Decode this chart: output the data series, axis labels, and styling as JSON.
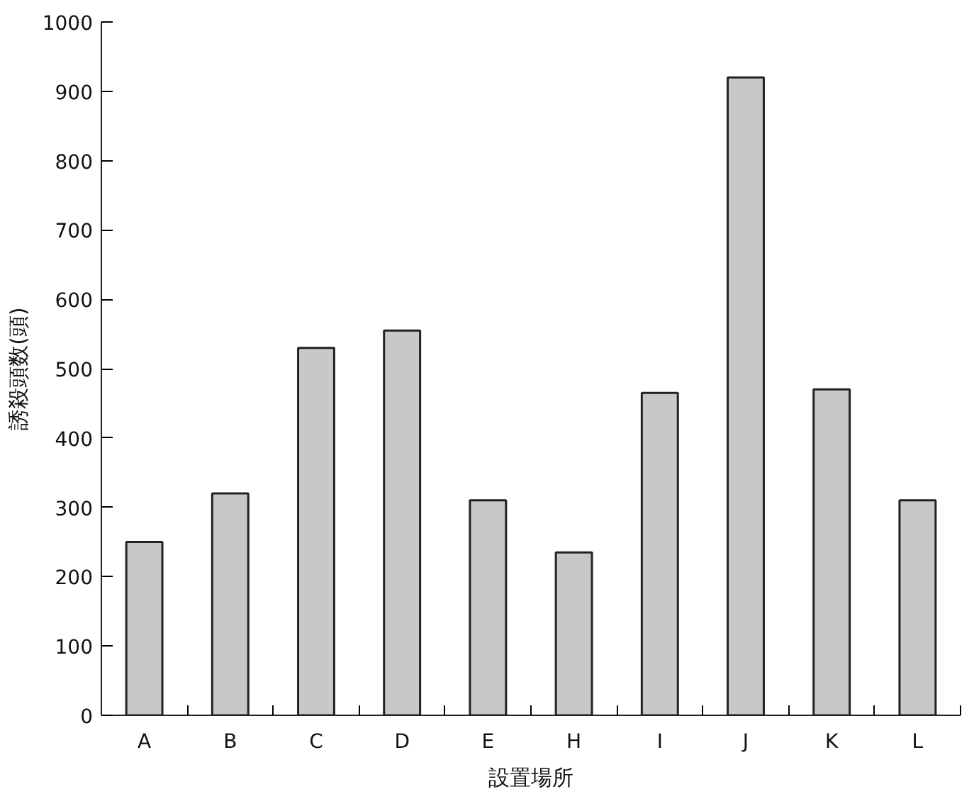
{
  "chart_data": {
    "type": "bar",
    "xlabel": "設置場所",
    "ylabel": "誘殺頭数(頭)",
    "categories": [
      "A",
      "B",
      "C",
      "D",
      "E",
      "H",
      "I",
      "J",
      "K",
      "L"
    ],
    "values": [
      250,
      320,
      530,
      555,
      310,
      235,
      465,
      920,
      470,
      310
    ],
    "color": "#c8c8c8",
    "ylim": [
      0,
      1000
    ],
    "yticks": [
      0,
      100,
      200,
      300,
      400,
      500,
      600,
      700,
      800,
      900,
      1000
    ],
    "grid": false
  }
}
